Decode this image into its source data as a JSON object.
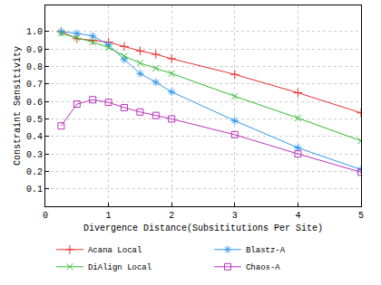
{
  "chart_data": {
    "type": "line",
    "x_label": "Divergence Distance(Subsititutions Per Site)",
    "y_label": "Constraint Sensitivity",
    "x": [
      0.25,
      0.5,
      0.75,
      1.0,
      1.25,
      1.5,
      1.75,
      2.0,
      3.0,
      4.0,
      5.0
    ],
    "series": [
      {
        "name": "Acana Local",
        "color": "#e8302e",
        "marker": "cross",
        "values": [
          1.0,
          0.96,
          0.95,
          0.94,
          0.915,
          0.89,
          0.87,
          0.845,
          0.755,
          0.65,
          0.535
        ]
      },
      {
        "name": "Blastz-A",
        "color": "#3399ee",
        "marker": "asterisk",
        "values": [
          1.0,
          0.99,
          0.975,
          0.925,
          0.84,
          0.76,
          0.71,
          0.655,
          0.49,
          0.335,
          0.21
        ]
      },
      {
        "name": "DiAlign Local",
        "color": "#33bb33",
        "marker": "x",
        "values": [
          0.99,
          0.965,
          0.94,
          0.91,
          0.86,
          0.82,
          0.79,
          0.76,
          0.63,
          0.505,
          0.375
        ]
      },
      {
        "name": "Chaos-A",
        "color": "#bb33bb",
        "marker": "square",
        "values": [
          0.46,
          0.585,
          0.61,
          0.595,
          0.565,
          0.54,
          0.52,
          0.5,
          0.41,
          0.3,
          0.195
        ]
      }
    ],
    "xlim": [
      0,
      5
    ],
    "xticks": [
      0,
      1,
      2,
      3,
      4,
      5
    ],
    "ylim": [
      0,
      1.15
    ],
    "yticks": [
      0.1,
      0.2,
      0.3,
      0.4,
      0.5,
      0.6,
      0.7,
      0.8,
      0.9,
      {
        "value": 1.0,
        "label": "1.0"
      }
    ],
    "grid": true,
    "legend": "bottom"
  }
}
